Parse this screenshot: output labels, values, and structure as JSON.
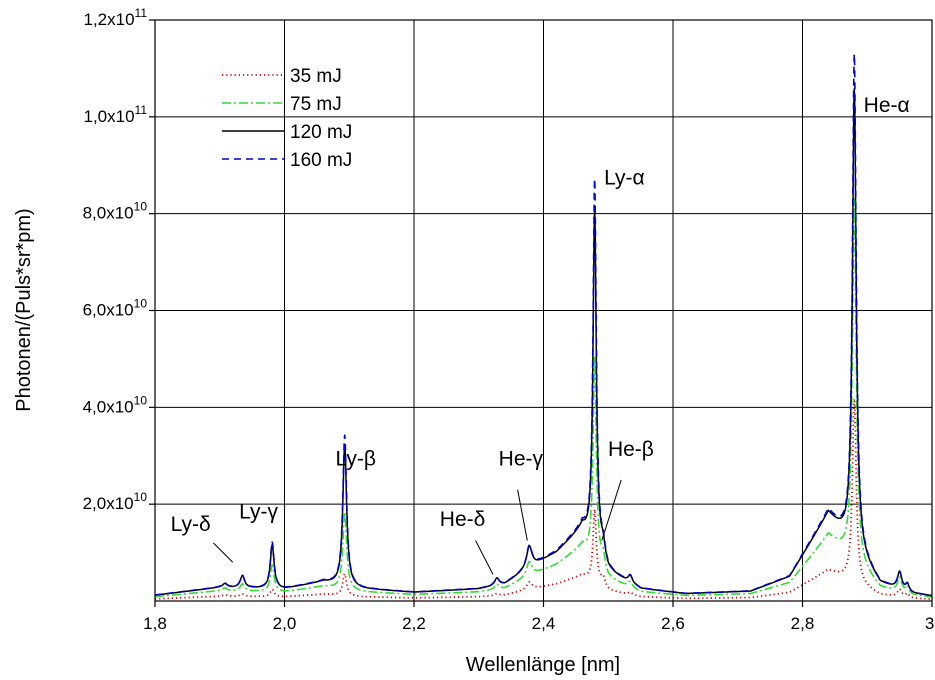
{
  "chart_data": {
    "type": "line",
    "xlabel": "Wellenlänge [nm]",
    "ylabel": "Photonen/(Puls*sr*pm)",
    "xlim": [
      1.8,
      3.0
    ],
    "ylim": [
      0,
      120000000000
    ],
    "x_ticks": [
      {
        "value": 1.8,
        "label": "1,8"
      },
      {
        "value": 2.0,
        "label": "2,0"
      },
      {
        "value": 2.2,
        "label": "2,2"
      },
      {
        "value": 2.4,
        "label": "2,4"
      },
      {
        "value": 2.6,
        "label": "2,6"
      },
      {
        "value": 2.8,
        "label": "2,8"
      },
      {
        "value": 3.0,
        "label": "3,"
      }
    ],
    "y_ticks": [
      {
        "value": 20000000000,
        "mant": "2,0x10",
        "exp": "10"
      },
      {
        "value": 40000000000,
        "mant": "4,0x10",
        "exp": "10"
      },
      {
        "value": 60000000000,
        "mant": "6,0x10",
        "exp": "10"
      },
      {
        "value": 80000000000,
        "mant": "8,0x10",
        "exp": "10"
      },
      {
        "value": 100000000000,
        "mant": "1,0x10",
        "exp": "11"
      },
      {
        "value": 120000000000,
        "mant": "1,2x10",
        "exp": "11"
      }
    ],
    "grid": true,
    "legend_position": "top-left",
    "baseline": [
      [
        1.8,
        1200000000.0
      ],
      [
        1.9,
        2800000000.0
      ],
      [
        2.0,
        2500000000.0
      ],
      [
        2.06,
        4000000000.0
      ],
      [
        2.12,
        2500000000.0
      ],
      [
        2.2,
        1800000000.0
      ],
      [
        2.3,
        2500000000.0
      ],
      [
        2.34,
        3500000000.0
      ],
      [
        2.38,
        7000000000.0
      ],
      [
        2.42,
        10000000000.0
      ],
      [
        2.46,
        15000000000.0
      ],
      [
        2.5,
        6000000000.0
      ],
      [
        2.55,
        2500000000.0
      ],
      [
        2.62,
        1500000000.0
      ],
      [
        2.72,
        2000000000.0
      ],
      [
        2.78,
        5000000000.0
      ],
      [
        2.84,
        18000000000.0
      ],
      [
        2.92,
        3500000000.0
      ],
      [
        2.97,
        1500000000.0
      ],
      [
        3.0,
        1000000000.0
      ]
    ],
    "peaks": [
      [
        1.908,
        0.004
      ],
      [
        1.935,
        0.004
      ],
      [
        1.981,
        0.0035
      ],
      [
        2.093,
        0.0035
      ],
      [
        2.328,
        0.004
      ],
      [
        2.378,
        0.005
      ],
      [
        2.479,
        0.003
      ],
      [
        2.492,
        0.004
      ],
      [
        2.534,
        0.004
      ],
      [
        2.88,
        0.0035
      ],
      [
        2.95,
        0.004
      ],
      [
        2.962,
        0.003
      ]
    ],
    "series": [
      {
        "name": "35 mJ",
        "color": "#d00000",
        "dash": "1.2,3",
        "width": 1.8,
        "scale": 0.35,
        "amps": [
          300000000.0,
          500000000.0,
          1500000000.0,
          4500000000.0,
          400000000.0,
          1500000000.0,
          15000000000.0,
          2000000000.0,
          500000000.0,
          38000000000.0,
          1500000000.0,
          800000000.0
        ]
      },
      {
        "name": "75 mJ",
        "color": "#33dd33",
        "dash": "9,3,2,3",
        "width": 1.6,
        "scale": 0.75,
        "amps": [
          600000000.0,
          1500000000.0,
          5500000000.0,
          16000000000.0,
          1000000000.0,
          3000000000.0,
          42000000000.0,
          3000000000.0,
          1200000000.0,
          75000000000.0,
          3000000000.0,
          1500000000.0
        ]
      },
      {
        "name": "120 mJ",
        "color": "#000000",
        "dash": "",
        "width": 1.5,
        "scale": 1.0,
        "amps": [
          800000000.0,
          2500000000.0,
          9000000000.0,
          29000000000.0,
          1500000000.0,
          4500000000.0,
          70000000000.0,
          3000000000.0,
          1500000000.0,
          95000000000.0,
          3500000000.0,
          1500000000.0
        ]
      },
      {
        "name": "160 mJ",
        "color": "#0000cc",
        "dash": "7,5",
        "width": 1.6,
        "scale": 1.02,
        "amps": [
          800000000.0,
          2500000000.0,
          9500000000.0,
          31000000000.0,
          1500000000.0,
          4500000000.0,
          76000000000.0,
          3000000000.0,
          1500000000.0,
          102000000000.0,
          3500000000.0,
          1500000000.0
        ]
      }
    ],
    "annotations": [
      {
        "text": "Ly-δ",
        "label_x": 1.855,
        "label_y": 14500000000.0,
        "arrow": [
          [
            1.89,
            12000000000.0
          ],
          [
            1.92,
            8000000000.0
          ]
        ]
      },
      {
        "text": "Ly-γ",
        "label_x": 1.96,
        "label_y": 17000000000.0,
        "arrow": null
      },
      {
        "text": "Ly-β",
        "label_x": 2.11,
        "label_y": 28000000000.0,
        "arrow": null
      },
      {
        "text": "He-δ",
        "label_x": 2.275,
        "label_y": 15500000000.0,
        "arrow": [
          [
            2.295,
            12500000000.0
          ],
          [
            2.322,
            5500000000.0
          ]
        ]
      },
      {
        "text": "He-γ",
        "label_x": 2.365,
        "label_y": 28000000000.0,
        "arrow": [
          [
            2.36,
            23000000000.0
          ],
          [
            2.375,
            12500000000.0
          ]
        ]
      },
      {
        "text": "He-β",
        "label_x": 2.535,
        "label_y": 30000000000.0,
        "arrow": [
          [
            2.52,
            25000000000.0
          ],
          [
            2.49,
            12500000000.0
          ]
        ]
      },
      {
        "text": "Ly-α",
        "label_x": 2.525,
        "label_y": 86000000000.0,
        "arrow": null
      },
      {
        "text": "He-α",
        "label_x": 2.93,
        "label_y": 101000000000.0,
        "arrow": null
      }
    ]
  }
}
